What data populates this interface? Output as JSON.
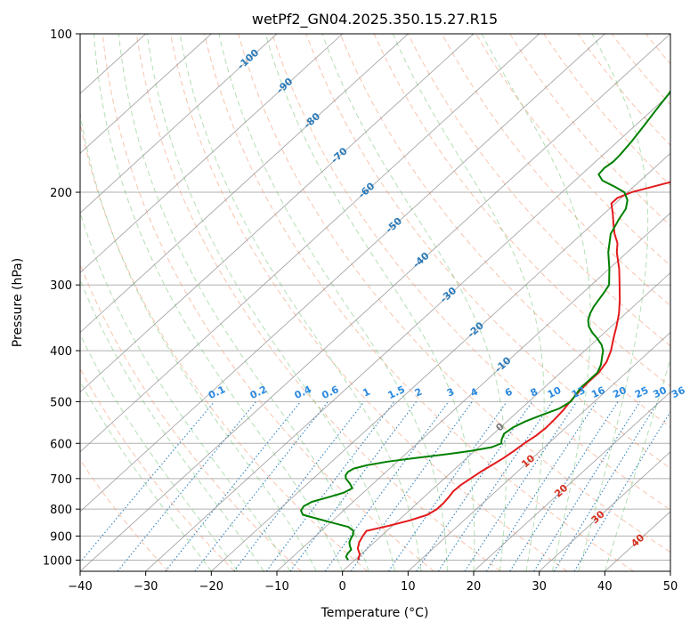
{
  "chart_data": {
    "type": "skew-t",
    "title": "wetPf2_GN04.2025.350.15.27.R15",
    "xlabel": "Temperature (°C)",
    "ylabel": "Pressure (hPa)",
    "xlim": [
      -40,
      50
    ],
    "ylim": [
      1050,
      100
    ],
    "y_scale": "log",
    "x_ticks": [
      -40,
      -30,
      -20,
      -10,
      0,
      10,
      20,
      30,
      40,
      50
    ],
    "y_ticks": [
      1000,
      900,
      800,
      700,
      600,
      500,
      400,
      300,
      200,
      100
    ],
    "x_tick_labels": [
      "−40",
      "−30",
      "−20",
      "−10",
      "0",
      "10",
      "20",
      "30",
      "40",
      "50"
    ],
    "y_tick_labels": [
      "1000",
      "900",
      "800",
      "700",
      "600",
      "500",
      "400",
      "300",
      "200",
      "100"
    ],
    "grid": true,
    "colors": {
      "temperature": "#e31a1c",
      "dewpoint": "#008000",
      "isotherm": "#8a8a8a",
      "dry_adiabat": "#f4a582",
      "moist_adiabat": "#74c476",
      "mixing_ratio": "#3182bd",
      "isotherm_label": "#2b7bba",
      "mixing_label": "#2b8ae0",
      "adiabat_label": "#d7301f"
    },
    "series": [
      {
        "key": "temperature",
        "points": [
          [
            1000,
            0.5
          ],
          [
            975,
            -0.2
          ],
          [
            950,
            -1.5
          ],
          [
            925,
            -2.3
          ],
          [
            900,
            -2.8
          ],
          [
            880,
            -3.1
          ],
          [
            870,
            -1.8
          ],
          [
            860,
            -0.5
          ],
          [
            840,
            1.8
          ],
          [
            820,
            3.5
          ],
          [
            800,
            4.0
          ],
          [
            780,
            4.0
          ],
          [
            760,
            3.8
          ],
          [
            740,
            3.5
          ],
          [
            720,
            3.6
          ],
          [
            700,
            4.0
          ],
          [
            680,
            4.4
          ],
          [
            660,
            5.0
          ],
          [
            640,
            5.6
          ],
          [
            620,
            6.0
          ],
          [
            600,
            6.3
          ],
          [
            580,
            6.8
          ],
          [
            560,
            7.0
          ],
          [
            540,
            6.9
          ],
          [
            520,
            6.7
          ],
          [
            500,
            6.3
          ],
          [
            480,
            6.0
          ],
          [
            460,
            5.8
          ],
          [
            440,
            5.8
          ],
          [
            420,
            5.2
          ],
          [
            400,
            4.0
          ],
          [
            380,
            2.4
          ],
          [
            360,
            0.8
          ],
          [
            340,
            -1.0
          ],
          [
            320,
            -3.2
          ],
          [
            300,
            -5.7
          ],
          [
            280,
            -8.4
          ],
          [
            260,
            -11.6
          ],
          [
            250,
            -13.0
          ],
          [
            240,
            -15.0
          ],
          [
            230,
            -16.8
          ],
          [
            220,
            -18.6
          ],
          [
            210,
            -20.6
          ],
          [
            205,
            -20.6
          ],
          [
            200,
            -19.4
          ],
          [
            195,
            -17.0
          ],
          [
            190,
            -14.5
          ],
          [
            185,
            -11.5
          ],
          [
            180,
            -10.5
          ],
          [
            170,
            -12.3
          ],
          [
            160,
            -13.6
          ],
          [
            150,
            -15.2
          ],
          [
            140,
            -16.6
          ],
          [
            130,
            -18.4
          ],
          [
            120,
            -19.8
          ],
          [
            110,
            -21.9
          ],
          [
            100,
            -24.2
          ]
        ]
      },
      {
        "key": "dewpoint",
        "points": [
          [
            1000,
            -1.0
          ],
          [
            985,
            -1.9
          ],
          [
            970,
            -2.2
          ],
          [
            955,
            -2.3
          ],
          [
            940,
            -3.1
          ],
          [
            925,
            -3.8
          ],
          [
            910,
            -4.2
          ],
          [
            895,
            -4.5
          ],
          [
            880,
            -5.1
          ],
          [
            865,
            -6.5
          ],
          [
            850,
            -9.5
          ],
          [
            835,
            -12.5
          ],
          [
            820,
            -15.5
          ],
          [
            805,
            -16.5
          ],
          [
            790,
            -16.8
          ],
          [
            775,
            -16.3
          ],
          [
            760,
            -14.6
          ],
          [
            745,
            -13.0
          ],
          [
            730,
            -12.4
          ],
          [
            715,
            -13.6
          ],
          [
            700,
            -15.0
          ],
          [
            690,
            -15.6
          ],
          [
            680,
            -15.8
          ],
          [
            670,
            -15.5
          ],
          [
            660,
            -14.0
          ],
          [
            650,
            -11.5
          ],
          [
            640,
            -8.0
          ],
          [
            630,
            -4.0
          ],
          [
            620,
            -0.5
          ],
          [
            610,
            2.0
          ],
          [
            600,
            2.8
          ],
          [
            590,
            2.2
          ],
          [
            575,
            1.6
          ],
          [
            560,
            1.9
          ],
          [
            545,
            2.8
          ],
          [
            530,
            4.2
          ],
          [
            515,
            5.8
          ],
          [
            500,
            6.4
          ],
          [
            485,
            6.0
          ],
          [
            470,
            5.6
          ],
          [
            455,
            5.6
          ],
          [
            440,
            5.6
          ],
          [
            425,
            4.8
          ],
          [
            410,
            3.6
          ],
          [
            400,
            2.8
          ],
          [
            390,
            1.6
          ],
          [
            380,
            0.0
          ],
          [
            370,
            -1.8
          ],
          [
            360,
            -3.4
          ],
          [
            350,
            -4.6
          ],
          [
            340,
            -5.4
          ],
          [
            330,
            -6.0
          ],
          [
            320,
            -6.4
          ],
          [
            310,
            -6.8
          ],
          [
            300,
            -7.3
          ],
          [
            280,
            -9.9
          ],
          [
            260,
            -12.9
          ],
          [
            240,
            -15.6
          ],
          [
            225,
            -16.8
          ],
          [
            215,
            -17.5
          ],
          [
            207,
            -18.7
          ],
          [
            200,
            -20.5
          ],
          [
            195,
            -23.0
          ],
          [
            190,
            -25.8
          ],
          [
            185,
            -27.4
          ],
          [
            180,
            -27.6
          ],
          [
            175,
            -27.3
          ],
          [
            170,
            -27.4
          ],
          [
            160,
            -27.9
          ],
          [
            150,
            -28.6
          ],
          [
            140,
            -29.4
          ],
          [
            130,
            -30.2
          ],
          [
            120,
            -31.5
          ],
          [
            110,
            -33.3
          ],
          [
            100,
            -35.5
          ]
        ]
      }
    ],
    "isotherm_labels": [
      "-100",
      "-90",
      "-80",
      "-70",
      "-60",
      "-50",
      "-40",
      "-30",
      "-20",
      "-10",
      "0",
      "10",
      "20",
      "30",
      "40"
    ],
    "mixing_ratio_labels": [
      "0.1",
      "0.2",
      "0.4",
      "0.6",
      "1",
      "1.5",
      "2",
      "3",
      "4",
      "6",
      "8",
      "10",
      "13",
      "16",
      "20",
      "25",
      "30",
      "36"
    ]
  }
}
